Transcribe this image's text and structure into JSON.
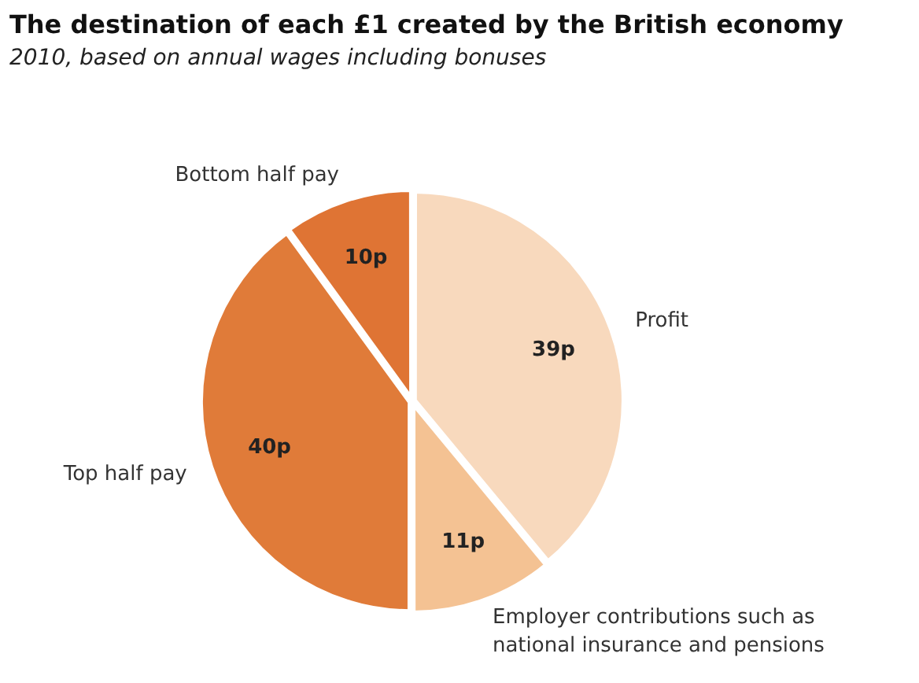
{
  "chart_data": {
    "type": "pie",
    "title": "The destination of each £1 created by the British economy",
    "subtitle": "2010, based on annual wages including bonuses",
    "categories": [
      "Profit",
      "Employer contributions such as national insurance and pensions",
      "Top half pay",
      "Bottom half pay"
    ],
    "values": [
      39,
      11,
      40,
      10
    ],
    "colors": [
      "#f8d9bd",
      "#f4c293",
      "#e07b39",
      "#df7434"
    ],
    "value_labels": [
      "39p",
      "11p",
      "40p",
      "10p"
    ],
    "legend": false
  }
}
